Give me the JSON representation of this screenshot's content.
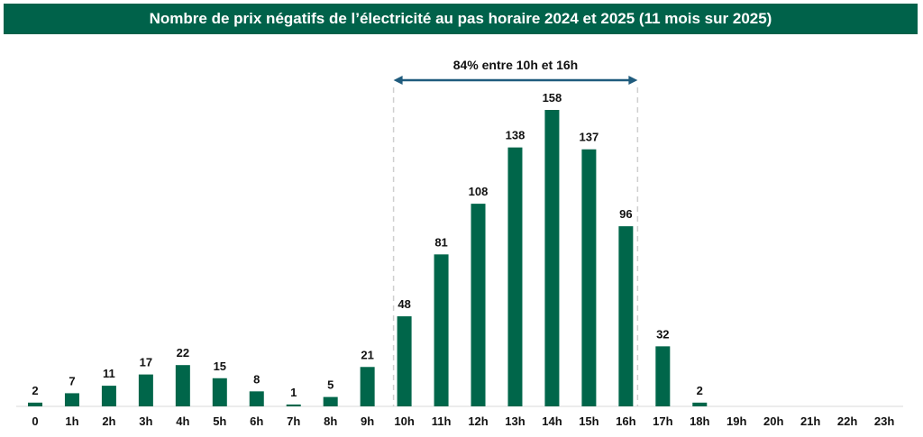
{
  "chart_data": {
    "type": "bar",
    "title": "Nombre de prix négatifs de l’électricité au pas horaire 2024 et 2025 (11 mois sur 2025)",
    "categories": [
      "0",
      "1h",
      "2h",
      "3h",
      "4h",
      "5h",
      "6h",
      "7h",
      "8h",
      "9h",
      "10h",
      "11h",
      "12h",
      "13h",
      "14h",
      "15h",
      "16h",
      "17h",
      "18h",
      "19h",
      "20h",
      "21h",
      "22h",
      "23h"
    ],
    "values": [
      2,
      7,
      11,
      17,
      22,
      15,
      8,
      1,
      5,
      21,
      48,
      81,
      108,
      138,
      158,
      137,
      96,
      32,
      2,
      0,
      0,
      0,
      0,
      0
    ],
    "xlabel": "",
    "ylabel": "",
    "ylim": [
      0,
      158
    ],
    "grid": false,
    "annotation": {
      "text": "84% entre 10h et 16h",
      "from": "10h",
      "to": "16h"
    },
    "colors": {
      "bar": "#00664a",
      "arrow": "#1f5b7d",
      "title_bg": "#00624a"
    }
  }
}
